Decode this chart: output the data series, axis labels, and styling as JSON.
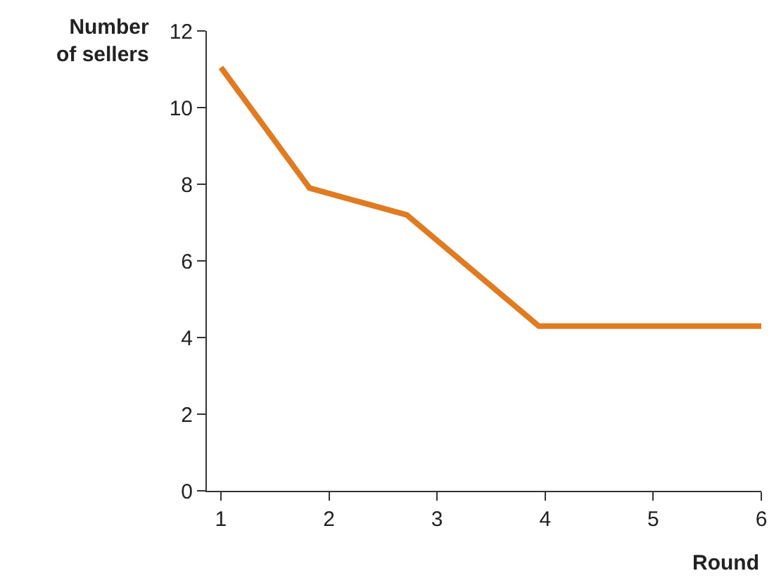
{
  "chart_data": {
    "type": "line",
    "xlabel": "Round",
    "ylabel": "Number\nof sellers",
    "x": [
      1,
      1.82,
      2.72,
      3.94,
      6
    ],
    "series": [
      {
        "color": "#e07b22",
        "values": [
          11.05,
          7.9,
          7.2,
          4.3,
          4.3
        ]
      }
    ],
    "xlim": [
      0.87,
      6
    ],
    "xticks": [
      1,
      2,
      3,
      4,
      5,
      6
    ],
    "ylim": [
      0,
      12
    ],
    "yticks": [
      0,
      2,
      4,
      6,
      8,
      10,
      12
    ],
    "marker": "none",
    "line_style": "solid"
  }
}
